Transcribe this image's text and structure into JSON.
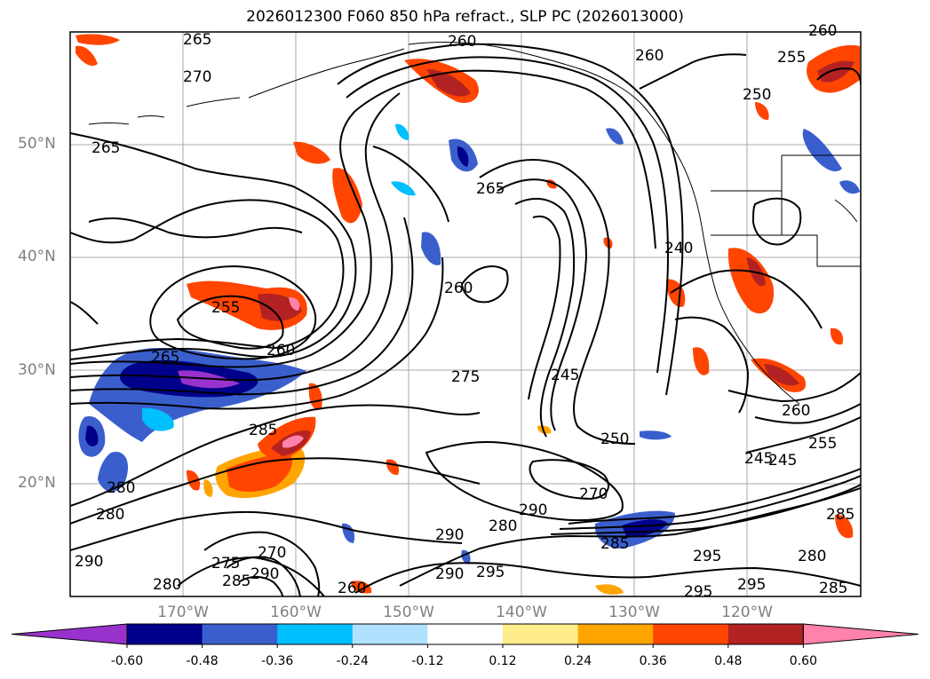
{
  "title": "2026012300 F060 850 hPa refract., SLP PC (2026013000)",
  "lat_labels": [
    {
      "text": "50°N",
      "lat": 50
    },
    {
      "text": "40°N",
      "lat": 40
    },
    {
      "text": "30°N",
      "lat": 30
    },
    {
      "text": "20°N",
      "lat": 20
    }
  ],
  "lon_labels": [
    {
      "text": "170°W",
      "lon": -170
    },
    {
      "text": "160°W",
      "lon": -160
    },
    {
      "text": "150°W",
      "lon": -150
    },
    {
      "text": "140°W",
      "lon": -140
    },
    {
      "text": "130°W",
      "lon": -130
    },
    {
      "text": "120°W",
      "lon": -120
    }
  ],
  "colorbar": {
    "tick_labels": [
      "-0.60",
      "-0.48",
      "-0.36",
      "-0.24",
      "-0.12",
      "0.12",
      "0.24",
      "0.36",
      "0.48",
      "0.60"
    ],
    "colors": [
      "#9932cc",
      "#00008b",
      "#3a5fcd",
      "#00bfff",
      "#b0e2ff",
      "#ffffff",
      "#ffec8b",
      "#ffa500",
      "#ff4500",
      "#b22222",
      "#ff82ab"
    ]
  },
  "contour_labels": [
    "265",
    "265",
    "260",
    "260",
    "255",
    "250",
    "270",
    "265",
    "265",
    "260",
    "240",
    "255",
    "260",
    "260",
    "275",
    "245",
    "285",
    "250",
    "245",
    "245",
    "255",
    "270",
    "280",
    "290",
    "285",
    "295",
    "290",
    "295",
    "280",
    "275",
    "285",
    "270",
    "290",
    "280",
    "260",
    "280",
    "260",
    "285",
    "280",
    "290",
    "285",
    "295",
    "290",
    "295"
  ],
  "colors": {
    "contour": "#000000",
    "grid": "#a9a9a9",
    "axis_labels": "#808080"
  }
}
